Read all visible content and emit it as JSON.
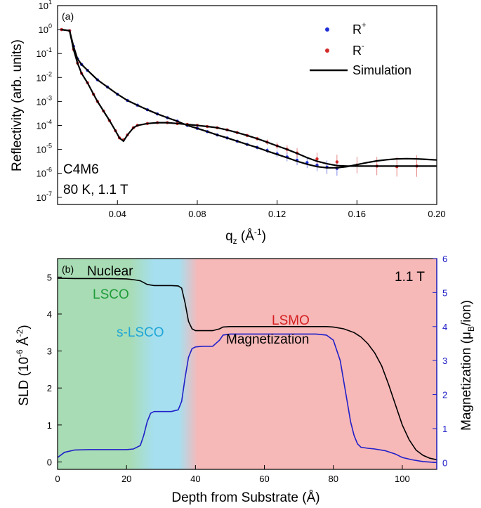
{
  "chart_data": [
    {
      "type": "scatter",
      "panel_label": "(a)",
      "xlabel_main": "q",
      "xlabel_sub": "z",
      "xlabel_rest": " (Å",
      "xlabel_sup": "-1",
      "xlabel_end": ")",
      "ylabel": "Reflectivity (arb. units)",
      "xlim": [
        0.01,
        0.2
      ],
      "ylim_log10": [
        -7.3,
        1
      ],
      "log_y": true,
      "x_ticks": [
        "0.04",
        "0.08",
        "0.12",
        "0.16",
        "0.20"
      ],
      "y_ticks": [
        {
          "base": "10",
          "exp": "1"
        },
        {
          "base": "10",
          "exp": "0"
        },
        {
          "base": "10",
          "exp": "-1"
        },
        {
          "base": "10",
          "exp": "-2"
        },
        {
          "base": "10",
          "exp": "-3"
        },
        {
          "base": "10",
          "exp": "-4"
        },
        {
          "base": "10",
          "exp": "-5"
        },
        {
          "base": "10",
          "exp": "-6"
        },
        {
          "base": "10",
          "exp": "-7"
        }
      ],
      "annotation_lines": [
        "C4M6",
        "80 K, 1.1 T"
      ],
      "legend": [
        {
          "name": "R",
          "sup": "+",
          "color": "#1f2fd6",
          "kind": "marker"
        },
        {
          "name": "R",
          "sup": "-",
          "color": "#d42a2a",
          "kind": "marker"
        },
        {
          "name": "Simulation",
          "color": "#000000",
          "kind": "line"
        }
      ],
      "series": [
        {
          "name": "R+",
          "color": "#1f2fd6",
          "x": [
            0.012,
            0.016,
            0.018,
            0.02,
            0.022,
            0.025,
            0.03,
            0.035,
            0.04,
            0.045,
            0.05,
            0.055,
            0.06,
            0.065,
            0.07,
            0.075,
            0.08,
            0.085,
            0.09,
            0.095,
            0.1,
            0.105,
            0.11,
            0.115,
            0.12,
            0.125,
            0.13,
            0.135,
            0.14,
            0.145,
            0.15
          ],
          "y": [
            1.0,
            0.9,
            0.2,
            0.06,
            0.035,
            0.02,
            0.008,
            0.004,
            0.002,
            0.0011,
            0.0007,
            0.00045,
            0.0003,
            0.00021,
            0.00015,
            0.0001,
            7.5e-05,
            5.5e-05,
            4e-05,
            3e-05,
            2.2e-05,
            1.6e-05,
            1.2e-05,
            9e-06,
            6.5e-06,
            4.8e-06,
            3.5e-06,
            2.8e-06,
            2.2e-06,
            1.8e-06,
            1.6e-06
          ]
        },
        {
          "name": "R-",
          "color": "#d42a2a",
          "x": [
            0.012,
            0.016,
            0.018,
            0.02,
            0.022,
            0.025,
            0.028,
            0.03,
            0.033,
            0.036,
            0.039,
            0.041,
            0.043,
            0.045,
            0.048,
            0.05,
            0.055,
            0.06,
            0.065,
            0.07,
            0.075,
            0.08,
            0.085,
            0.09,
            0.095,
            0.1,
            0.105,
            0.11,
            0.115,
            0.12,
            0.125,
            0.13,
            0.14,
            0.15,
            0.16,
            0.17,
            0.18,
            0.19
          ],
          "y": [
            1.0,
            0.9,
            0.15,
            0.04,
            0.015,
            0.006,
            0.002,
            0.001,
            0.0004,
            0.00016,
            6e-05,
            3e-05,
            2.5e-05,
            4e-05,
            8e-05,
            0.0001,
            0.00012,
            0.00013,
            0.00013,
            0.00012,
            0.00011,
            0.0001,
            9e-05,
            8e-05,
            6.5e-05,
            5e-05,
            3.8e-05,
            2.8e-05,
            2e-05,
            1.4e-05,
            1e-05,
            7e-06,
            4e-06,
            3e-06,
            2.2e-06,
            2e-06,
            1.9e-06,
            2e-06
          ]
        },
        {
          "name": "Simulation (R+)",
          "color": "#000000",
          "line": true,
          "x": [
            0.012,
            0.016,
            0.018,
            0.02,
            0.022,
            0.025,
            0.03,
            0.035,
            0.04,
            0.045,
            0.05,
            0.055,
            0.06,
            0.065,
            0.07,
            0.075,
            0.08,
            0.085,
            0.09,
            0.095,
            0.1,
            0.105,
            0.11,
            0.115,
            0.12,
            0.125,
            0.13,
            0.135,
            0.14,
            0.145,
            0.15,
            0.155,
            0.16,
            0.165,
            0.17,
            0.175,
            0.18,
            0.185,
            0.19,
            0.195,
            0.2
          ],
          "y": [
            1.0,
            0.9,
            0.2,
            0.06,
            0.035,
            0.02,
            0.008,
            0.004,
            0.002,
            0.0011,
            0.0007,
            0.00045,
            0.0003,
            0.00021,
            0.00015,
            0.0001,
            7.5e-05,
            5.5e-05,
            4e-05,
            3e-05,
            2.2e-05,
            1.6e-05,
            1.2e-05,
            8.5e-06,
            6.2e-06,
            4.5e-06,
            3.2e-06,
            2.4e-06,
            1.9e-06,
            1.7e-06,
            1.7e-06,
            1.9e-06,
            2.3e-06,
            2.8e-06,
            3.3e-06,
            3.7e-06,
            4e-06,
            4.1e-06,
            4e-06,
            3.8e-06,
            3.6e-06
          ]
        },
        {
          "name": "Simulation (R-)",
          "color": "#000000",
          "line": true,
          "x": [
            0.012,
            0.016,
            0.018,
            0.02,
            0.022,
            0.025,
            0.028,
            0.03,
            0.033,
            0.036,
            0.039,
            0.041,
            0.043,
            0.045,
            0.048,
            0.05,
            0.055,
            0.06,
            0.065,
            0.07,
            0.075,
            0.08,
            0.085,
            0.09,
            0.095,
            0.1,
            0.105,
            0.11,
            0.115,
            0.12,
            0.125,
            0.13,
            0.135,
            0.14,
            0.145,
            0.15,
            0.155,
            0.16,
            0.17,
            0.18,
            0.19,
            0.2
          ],
          "y": [
            1.0,
            0.9,
            0.15,
            0.04,
            0.015,
            0.006,
            0.002,
            0.001,
            0.0004,
            0.00016,
            6e-05,
            3e-05,
            2.2e-05,
            4e-05,
            8e-05,
            0.0001,
            0.00012,
            0.00013,
            0.00013,
            0.00012,
            0.00011,
            0.0001,
            9e-05,
            8e-05,
            6.5e-05,
            5e-05,
            3.8e-05,
            2.8e-05,
            2e-05,
            1.4e-05,
            1e-05,
            6.8e-06,
            4.5e-06,
            3.2e-06,
            2.5e-06,
            2.1e-06,
            2e-06,
            2e-06,
            2e-06,
            2e-06,
            2e-06,
            2e-06
          ]
        }
      ]
    },
    {
      "type": "line",
      "panel_label": "(b)",
      "xlabel": "Depth from Substrate (Å)",
      "ylabel_left_main": "SLD (10",
      "ylabel_left_sup": "-6",
      "ylabel_left_mid": " Å",
      "ylabel_left_sup2": "-2",
      "ylabel_left_end": ")",
      "ylabel_right_main": "Magnetization (μ",
      "ylabel_right_sub": "B",
      "ylabel_right_end": "/ion)",
      "xlim": [
        0,
        110
      ],
      "ylim_left": [
        -0.2,
        5.5
      ],
      "ylim_right": [
        -0.2,
        6
      ],
      "x_ticks": [
        "0",
        "20",
        "40",
        "60",
        "80",
        "100"
      ],
      "y_ticks_left": [
        "0",
        "1",
        "2",
        "3",
        "4",
        "5"
      ],
      "y_ticks_right": [
        "0",
        "1",
        "2",
        "3",
        "4",
        "5",
        "6"
      ],
      "field_label": "1.1 T",
      "regions": [
        {
          "label": "LSCO",
          "from": 0,
          "to": 25,
          "color": "#a8dcb4",
          "text_color": "#1f9c3a"
        },
        {
          "label": "s-LSCO",
          "from": 25,
          "to": 38,
          "color": "#a6dff0",
          "text_color": "#1ea6d6"
        },
        {
          "label": "LSMO",
          "from": 38,
          "to": 110,
          "color": "#f7b8b8",
          "text_color": "#d42020"
        }
      ],
      "series": [
        {
          "name": "Nuclear",
          "color": "#000000",
          "axis": "left",
          "x": [
            0,
            5,
            10,
            15,
            20,
            22,
            24,
            25,
            26,
            28,
            30,
            33,
            35,
            36,
            37,
            38,
            39,
            40,
            43,
            45,
            47,
            48,
            50,
            55,
            60,
            65,
            70,
            75,
            78,
            80,
            83,
            86,
            88,
            90,
            92,
            94,
            96,
            98,
            100,
            102,
            104,
            106,
            108,
            110
          ],
          "y": [
            4.97,
            4.96,
            4.96,
            4.96,
            4.95,
            4.93,
            4.9,
            4.85,
            4.8,
            4.77,
            4.77,
            4.77,
            4.76,
            4.7,
            4.3,
            3.8,
            3.6,
            3.55,
            3.55,
            3.55,
            3.6,
            3.65,
            3.66,
            3.66,
            3.66,
            3.66,
            3.66,
            3.66,
            3.66,
            3.65,
            3.6,
            3.5,
            3.38,
            3.2,
            2.95,
            2.6,
            2.1,
            1.55,
            1.0,
            0.6,
            0.32,
            0.18,
            0.1,
            0.06
          ]
        },
        {
          "name": "Magnetization",
          "color": "#2020c8",
          "axis": "right",
          "x": [
            0,
            2,
            5,
            10,
            15,
            20,
            22,
            24,
            25,
            26,
            27,
            28,
            30,
            33,
            35,
            36,
            37,
            38,
            39,
            40,
            42,
            45,
            47,
            48,
            50,
            55,
            60,
            65,
            70,
            75,
            78,
            80,
            82,
            84,
            85,
            86,
            87,
            88,
            90,
            92,
            95,
            98,
            100,
            103,
            106,
            110
          ],
          "y": [
            0.15,
            0.3,
            0.37,
            0.38,
            0.38,
            0.38,
            0.4,
            0.5,
            0.8,
            1.2,
            1.45,
            1.5,
            1.5,
            1.5,
            1.55,
            1.8,
            2.5,
            3.1,
            3.35,
            3.4,
            3.42,
            3.42,
            3.6,
            3.75,
            3.78,
            3.78,
            3.78,
            3.78,
            3.78,
            3.78,
            3.75,
            3.6,
            3.0,
            1.8,
            1.2,
            0.8,
            0.55,
            0.45,
            0.42,
            0.4,
            0.35,
            0.25,
            0.15,
            0.08,
            0.03,
            0.0
          ]
        }
      ]
    }
  ]
}
